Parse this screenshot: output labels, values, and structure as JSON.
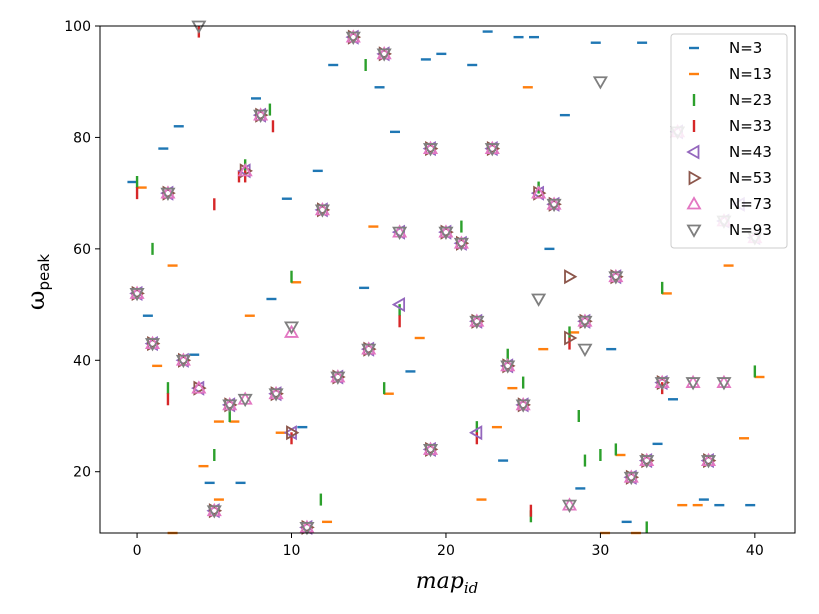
{
  "chart_data": {
    "type": "scatter",
    "title": "",
    "xlabel": "map",
    "xlabel_sub": "id",
    "ylabel": "ω",
    "ylabel_sub": "peak",
    "xlim": [
      -2.4,
      42.6
    ],
    "ylim": [
      9,
      100
    ],
    "xticks": [
      0,
      10,
      20,
      30,
      40
    ],
    "yticks": [
      20,
      40,
      60,
      80,
      100
    ],
    "grid": false,
    "legend_position": "top-right",
    "series": [
      {
        "name": "N=3",
        "marker": "hline",
        "color": "#1f77b4",
        "points": [
          [
            -0.3,
            72
          ],
          [
            0.7,
            48
          ],
          [
            1.7,
            78
          ],
          [
            2.7,
            82
          ],
          [
            3.7,
            41
          ],
          [
            4.7,
            18
          ],
          [
            6.7,
            18
          ],
          [
            7.7,
            87
          ],
          [
            8.7,
            51
          ],
          [
            9.7,
            69
          ],
          [
            10.7,
            28
          ],
          [
            11.7,
            74
          ],
          [
            12.7,
            93
          ],
          [
            14.7,
            53
          ],
          [
            15.7,
            89
          ],
          [
            16.7,
            81
          ],
          [
            17.7,
            38
          ],
          [
            18.7,
            94
          ],
          [
            19.7,
            95
          ],
          [
            21.7,
            93
          ],
          [
            22.7,
            99
          ],
          [
            23.7,
            22
          ],
          [
            24.7,
            98
          ],
          [
            25.7,
            98
          ],
          [
            26.7,
            60
          ],
          [
            27.7,
            84
          ],
          [
            28.7,
            17
          ],
          [
            29.7,
            97
          ],
          [
            30.7,
            42
          ],
          [
            31.7,
            11
          ],
          [
            32.7,
            97
          ],
          [
            33.7,
            25
          ],
          [
            34.7,
            33
          ],
          [
            36.7,
            15
          ],
          [
            37.7,
            14
          ],
          [
            39.7,
            14
          ]
        ]
      },
      {
        "name": "N=13",
        "marker": "hline",
        "color": "#ff7f0e",
        "points": [
          [
            0.3,
            71
          ],
          [
            1.3,
            39
          ],
          [
            2.3,
            57
          ],
          [
            5.3,
            15
          ],
          [
            4.3,
            21
          ],
          [
            6.3,
            29
          ],
          [
            7.3,
            48
          ],
          [
            9.3,
            27
          ],
          [
            10.3,
            54
          ],
          [
            12.3,
            11
          ],
          [
            15.3,
            64
          ],
          [
            16.3,
            34
          ],
          [
            18.3,
            44
          ],
          [
            22.3,
            15
          ],
          [
            23.3,
            28
          ],
          [
            24.3,
            35
          ],
          [
            25.3,
            89
          ],
          [
            26.3,
            42
          ],
          [
            30.3,
            9
          ],
          [
            31.3,
            23
          ],
          [
            32.3,
            9
          ],
          [
            34.3,
            52
          ],
          [
            35.3,
            14
          ],
          [
            36.3,
            14
          ],
          [
            38.3,
            57
          ],
          [
            39.3,
            26
          ],
          [
            40.3,
            37
          ],
          [
            28.3,
            45
          ],
          [
            5.3,
            29
          ],
          [
            2.3,
            9
          ]
        ]
      },
      {
        "name": "N=23",
        "marker": "vline",
        "color": "#2ca02c",
        "points": [
          [
            0.0,
            72
          ],
          [
            1.0,
            60
          ],
          [
            2.0,
            35
          ],
          [
            5.0,
            23
          ],
          [
            6.0,
            30
          ],
          [
            8.6,
            85
          ],
          [
            10.0,
            55
          ],
          [
            11.9,
            15
          ],
          [
            14.8,
            93
          ],
          [
            16.0,
            35
          ],
          [
            17.0,
            49
          ],
          [
            21.0,
            64
          ],
          [
            22.0,
            28
          ],
          [
            24.0,
            41
          ],
          [
            25.0,
            36
          ],
          [
            25.5,
            12
          ],
          [
            26.0,
            71
          ],
          [
            28.0,
            45
          ],
          [
            29.0,
            22
          ],
          [
            30.0,
            23
          ],
          [
            31.0,
            24
          ],
          [
            33.0,
            10
          ],
          [
            34.0,
            53
          ],
          [
            40.0,
            38
          ],
          [
            28.6,
            30
          ],
          [
            7.0,
            75
          ]
        ]
      },
      {
        "name": "N=33",
        "marker": "vline",
        "color": "#d62728",
        "points": [
          [
            0.0,
            70
          ],
          [
            2.0,
            33
          ],
          [
            4.0,
            99
          ],
          [
            5.0,
            68
          ],
          [
            6.6,
            73
          ],
          [
            8.8,
            82
          ],
          [
            10.0,
            26
          ],
          [
            17.0,
            47
          ],
          [
            22.0,
            26
          ],
          [
            25.5,
            13
          ],
          [
            28.0,
            43
          ],
          [
            34.0,
            35
          ],
          [
            7.0,
            73
          ]
        ]
      },
      {
        "name": "N=43",
        "marker": "tri-left",
        "color": "#9467bd",
        "points": [
          [
            0,
            52
          ],
          [
            1,
            43
          ],
          [
            2,
            70
          ],
          [
            3,
            40
          ],
          [
            4,
            35
          ],
          [
            5,
            13
          ],
          [
            6,
            32
          ],
          [
            7,
            74
          ],
          [
            8,
            84
          ],
          [
            9,
            34
          ],
          [
            10,
            27
          ],
          [
            11,
            10
          ],
          [
            12,
            67
          ],
          [
            13,
            37
          ],
          [
            14,
            98
          ],
          [
            15,
            42
          ],
          [
            16,
            95
          ],
          [
            17,
            63
          ],
          [
            17,
            50
          ],
          [
            19,
            24
          ],
          [
            19,
            78
          ],
          [
            20,
            63
          ],
          [
            21,
            61
          ],
          [
            22,
            47
          ],
          [
            22,
            27
          ],
          [
            23,
            78
          ],
          [
            24,
            39
          ],
          [
            25,
            32
          ],
          [
            26,
            70
          ],
          [
            27,
            68
          ],
          [
            29,
            47
          ],
          [
            31,
            55
          ],
          [
            32,
            19
          ],
          [
            33,
            22
          ],
          [
            34,
            36
          ],
          [
            35,
            81
          ],
          [
            37,
            22
          ],
          [
            38,
            65
          ],
          [
            39,
            68
          ],
          [
            40,
            62
          ]
        ]
      },
      {
        "name": "N=53",
        "marker": "tri-right",
        "color": "#8c564b",
        "points": [
          [
            0,
            52
          ],
          [
            1,
            43
          ],
          [
            2,
            70
          ],
          [
            3,
            40
          ],
          [
            4,
            35
          ],
          [
            5,
            13
          ],
          [
            6,
            32
          ],
          [
            7,
            74
          ],
          [
            8,
            84
          ],
          [
            9,
            34
          ],
          [
            10,
            27
          ],
          [
            11,
            10
          ],
          [
            12,
            67
          ],
          [
            13,
            37
          ],
          [
            14,
            98
          ],
          [
            15,
            42
          ],
          [
            16,
            95
          ],
          [
            19,
            24
          ],
          [
            19,
            78
          ],
          [
            20,
            63
          ],
          [
            21,
            61
          ],
          [
            22,
            47
          ],
          [
            23,
            78
          ],
          [
            24,
            39
          ],
          [
            25,
            32
          ],
          [
            26,
            70
          ],
          [
            27,
            68
          ],
          [
            28,
            55
          ],
          [
            28,
            44
          ],
          [
            29,
            47
          ],
          [
            31,
            55
          ],
          [
            32,
            19
          ],
          [
            33,
            22
          ],
          [
            34,
            36
          ],
          [
            37,
            22
          ]
        ]
      },
      {
        "name": "N=73",
        "marker": "tri-up",
        "color": "#e377c2",
        "points": [
          [
            0,
            52
          ],
          [
            1,
            43
          ],
          [
            2,
            70
          ],
          [
            3,
            40
          ],
          [
            4,
            35
          ],
          [
            5,
            13
          ],
          [
            6,
            32
          ],
          [
            7,
            33
          ],
          [
            7,
            74
          ],
          [
            8,
            84
          ],
          [
            9,
            34
          ],
          [
            10,
            45
          ],
          [
            11,
            10
          ],
          [
            12,
            67
          ],
          [
            13,
            37
          ],
          [
            14,
            98
          ],
          [
            15,
            42
          ],
          [
            16,
            95
          ],
          [
            17,
            63
          ],
          [
            19,
            24
          ],
          [
            19,
            78
          ],
          [
            20,
            63
          ],
          [
            21,
            61
          ],
          [
            22,
            47
          ],
          [
            23,
            78
          ],
          [
            24,
            39
          ],
          [
            25,
            32
          ],
          [
            26,
            70
          ],
          [
            27,
            68
          ],
          [
            28,
            14
          ],
          [
            29,
            47
          ],
          [
            31,
            55
          ],
          [
            32,
            19
          ],
          [
            33,
            22
          ],
          [
            34,
            36
          ],
          [
            35,
            81
          ],
          [
            36,
            36
          ],
          [
            37,
            22
          ],
          [
            38,
            36
          ],
          [
            38,
            65
          ],
          [
            40,
            62
          ]
        ]
      },
      {
        "name": "N=93",
        "marker": "tri-down",
        "color": "#7f7f7f",
        "points": [
          [
            0,
            52
          ],
          [
            1,
            43
          ],
          [
            2,
            70
          ],
          [
            3,
            40
          ],
          [
            4,
            100
          ],
          [
            5,
            13
          ],
          [
            6,
            32
          ],
          [
            7,
            33
          ],
          [
            8,
            84
          ],
          [
            9,
            34
          ],
          [
            10,
            46
          ],
          [
            11,
            10
          ],
          [
            12,
            67
          ],
          [
            13,
            37
          ],
          [
            14,
            98
          ],
          [
            15,
            42
          ],
          [
            16,
            95
          ],
          [
            17,
            63
          ],
          [
            19,
            24
          ],
          [
            19,
            78
          ],
          [
            20,
            63
          ],
          [
            21,
            61
          ],
          [
            22,
            47
          ],
          [
            23,
            78
          ],
          [
            24,
            39
          ],
          [
            25,
            32
          ],
          [
            26,
            51
          ],
          [
            27,
            68
          ],
          [
            28,
            14
          ],
          [
            29,
            42
          ],
          [
            29,
            47
          ],
          [
            30,
            90
          ],
          [
            31,
            55
          ],
          [
            32,
            19
          ],
          [
            33,
            22
          ],
          [
            34,
            36
          ],
          [
            35,
            81
          ],
          [
            36,
            36
          ],
          [
            37,
            22
          ],
          [
            38,
            36
          ],
          [
            38,
            65
          ],
          [
            40,
            62
          ]
        ]
      }
    ]
  }
}
